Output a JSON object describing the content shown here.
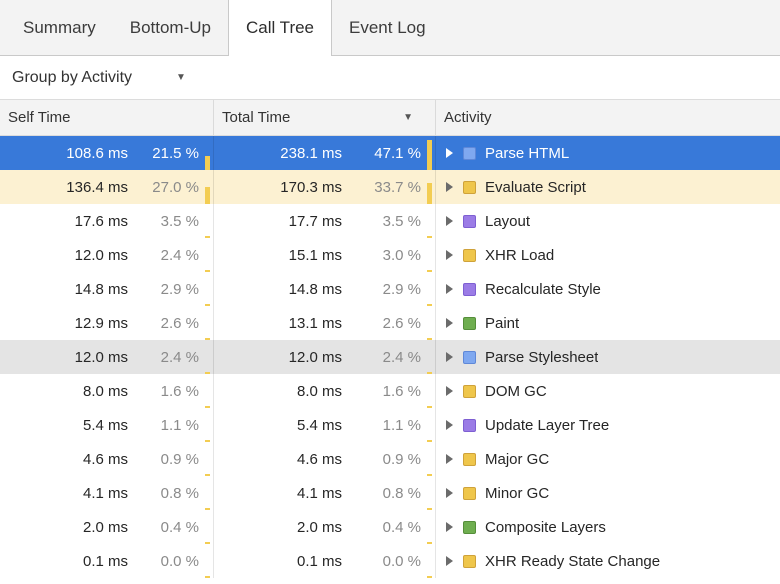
{
  "tabs": [
    {
      "label": "Summary",
      "selected": false
    },
    {
      "label": "Bottom-Up",
      "selected": false
    },
    {
      "label": "Call Tree",
      "selected": true
    },
    {
      "label": "Event Log",
      "selected": false
    }
  ],
  "toolbar": {
    "group_by_label": "Group by Activity",
    "dropdown_caret": "▼"
  },
  "colors": {
    "loading": {
      "fill": "#7fa8f0",
      "border": "#5f88d8"
    },
    "scripting": {
      "fill": "#efc64b",
      "border": "#cfa23a"
    },
    "rendering": {
      "fill": "#9b7ce6",
      "border": "#7e5fd2"
    },
    "painting": {
      "fill": "#6fae50",
      "border": "#558e3a"
    },
    "selection_row": "#3879d9",
    "highlight_row": "#fcf1d2",
    "hover_row": "#e4e4e4",
    "percent_bar": "#f3cd52"
  },
  "table": {
    "columns": [
      {
        "label": "Self Time",
        "sorted": false,
        "sort_indicator": ""
      },
      {
        "label": "Total Time",
        "sorted": true,
        "sort_indicator": "▼"
      },
      {
        "label": "Activity",
        "sorted": false,
        "sort_indicator": ""
      }
    ],
    "rows": [
      {
        "self_time": "108.6 ms",
        "self_pct": "21.5 %",
        "total_time": "238.1 ms",
        "total_pct": "47.1 %",
        "activity": "Parse HTML",
        "category": "loading",
        "state": "selected"
      },
      {
        "self_time": "136.4 ms",
        "self_pct": "27.0 %",
        "total_time": "170.3 ms",
        "total_pct": "33.7 %",
        "activity": "Evaluate Script",
        "category": "scripting",
        "state": "highlight"
      },
      {
        "self_time": "17.6 ms",
        "self_pct": "3.5 %",
        "total_time": "17.7 ms",
        "total_pct": "3.5 %",
        "activity": "Layout",
        "category": "rendering",
        "state": ""
      },
      {
        "self_time": "12.0 ms",
        "self_pct": "2.4 %",
        "total_time": "15.1 ms",
        "total_pct": "3.0 %",
        "activity": "XHR Load",
        "category": "scripting",
        "state": ""
      },
      {
        "self_time": "14.8 ms",
        "self_pct": "2.9 %",
        "total_time": "14.8 ms",
        "total_pct": "2.9 %",
        "activity": "Recalculate Style",
        "category": "rendering",
        "state": ""
      },
      {
        "self_time": "12.9 ms",
        "self_pct": "2.6 %",
        "total_time": "13.1 ms",
        "total_pct": "2.6 %",
        "activity": "Paint",
        "category": "painting",
        "state": ""
      },
      {
        "self_time": "12.0 ms",
        "self_pct": "2.4 %",
        "total_time": "12.0 ms",
        "total_pct": "2.4 %",
        "activity": "Parse Stylesheet",
        "category": "loading",
        "state": "hover"
      },
      {
        "self_time": "8.0 ms",
        "self_pct": "1.6 %",
        "total_time": "8.0 ms",
        "total_pct": "1.6 %",
        "activity": "DOM GC",
        "category": "scripting",
        "state": ""
      },
      {
        "self_time": "5.4 ms",
        "self_pct": "1.1 %",
        "total_time": "5.4 ms",
        "total_pct": "1.1 %",
        "activity": "Update Layer Tree",
        "category": "rendering",
        "state": ""
      },
      {
        "self_time": "4.6 ms",
        "self_pct": "0.9 %",
        "total_time": "4.6 ms",
        "total_pct": "0.9 %",
        "activity": "Major GC",
        "category": "scripting",
        "state": ""
      },
      {
        "self_time": "4.1 ms",
        "self_pct": "0.8 %",
        "total_time": "4.1 ms",
        "total_pct": "0.8 %",
        "activity": "Minor GC",
        "category": "scripting",
        "state": ""
      },
      {
        "self_time": "2.0 ms",
        "self_pct": "0.4 %",
        "total_time": "2.0 ms",
        "total_pct": "0.4 %",
        "activity": "Composite Layers",
        "category": "painting",
        "state": ""
      },
      {
        "self_time": "0.1 ms",
        "self_pct": "0.0 %",
        "total_time": "0.1 ms",
        "total_pct": "0.0 %",
        "activity": "XHR Ready State Change",
        "category": "scripting",
        "state": ""
      }
    ]
  }
}
